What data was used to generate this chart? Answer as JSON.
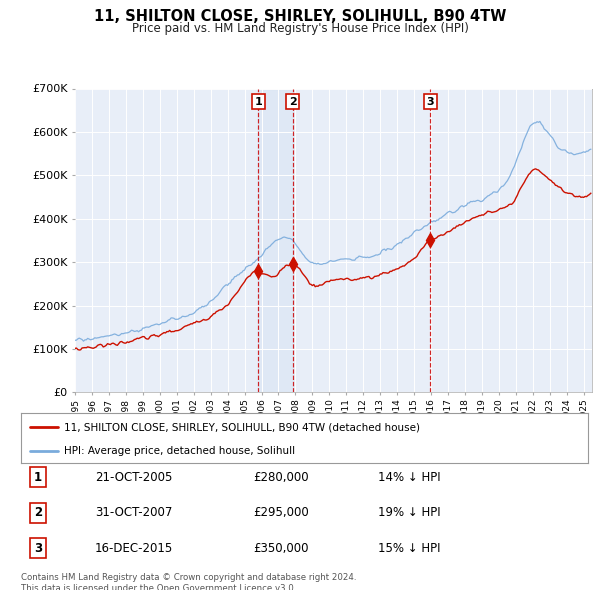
{
  "title": "11, SHILTON CLOSE, SHIRLEY, SOLIHULL, B90 4TW",
  "subtitle": "Price paid vs. HM Land Registry's House Price Index (HPI)",
  "ylim": [
    0,
    700000
  ],
  "yticks": [
    0,
    100000,
    200000,
    300000,
    400000,
    500000,
    600000,
    700000
  ],
  "ytick_labels": [
    "£0",
    "£100K",
    "£200K",
    "£300K",
    "£400K",
    "£500K",
    "£600K",
    "£700K"
  ],
  "xlim_start": 1995.0,
  "xlim_end": 2025.5,
  "background_color": "#ffffff",
  "plot_bg_color": "#e8eef8",
  "grid_color": "#ffffff",
  "sale_dates": [
    2005.81,
    2007.83,
    2015.96
  ],
  "sale_prices": [
    280000,
    295000,
    350000
  ],
  "sale_labels": [
    "1",
    "2",
    "3"
  ],
  "sale_info": [
    {
      "num": "1",
      "date": "21-OCT-2005",
      "price": "£280,000",
      "hpi": "14% ↓ HPI"
    },
    {
      "num": "2",
      "date": "31-OCT-2007",
      "price": "£295,000",
      "hpi": "19% ↓ HPI"
    },
    {
      "num": "3",
      "date": "16-DEC-2015",
      "price": "£350,000",
      "hpi": "15% ↓ HPI"
    }
  ],
  "hpi_line_color": "#7aabdc",
  "price_line_color": "#cc1100",
  "vline_color": "#cc0000",
  "legend_label_red": "11, SHILTON CLOSE, SHIRLEY, SOLIHULL, B90 4TW (detached house)",
  "legend_label_blue": "HPI: Average price, detached house, Solihull",
  "footer": "Contains HM Land Registry data © Crown copyright and database right 2024.\nThis data is licensed under the Open Government Licence v3.0."
}
